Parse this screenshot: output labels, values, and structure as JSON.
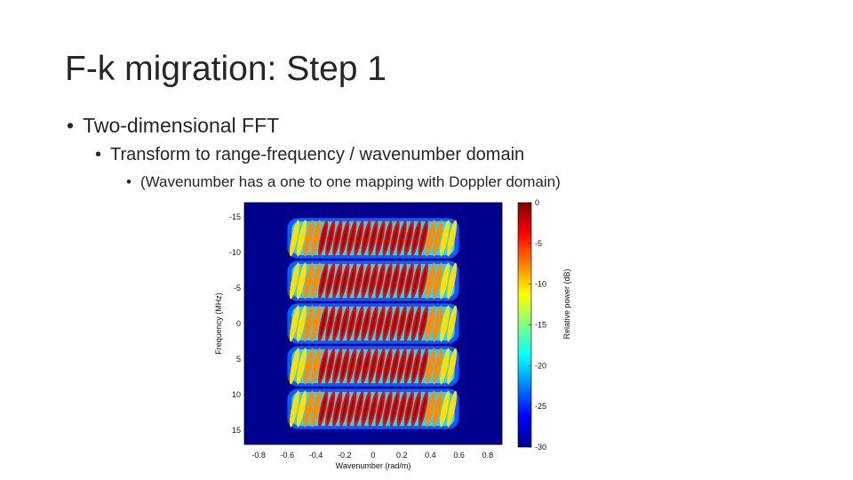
{
  "slide": {
    "title": "F-k migration: Step 1",
    "bullets": [
      {
        "level": 1,
        "marker": "•",
        "text": "Two-dimensional FFT"
      },
      {
        "level": 2,
        "marker": "•",
        "text": "Transform to range-frequency / wavenumber domain"
      },
      {
        "level": 3,
        "marker": "•",
        "text": "(Wavenumber has a one to one mapping with Doppler domain)"
      }
    ]
  },
  "chart_data": {
    "type": "heatmap",
    "xlabel": "Wavenumber (rad/m)",
    "ylabel": "Frequency (MHz)",
    "xlim": [
      -0.9,
      0.9
    ],
    "ylim": [
      -17,
      17
    ],
    "y_inverted": true,
    "xticks": [
      "-0.8",
      "-0.6",
      "-0.4",
      "-0.2",
      "0",
      "0.2",
      "0.4",
      "0.6",
      "0.8"
    ],
    "yticks": [
      "-15",
      "-10",
      "-5",
      "0",
      "5",
      "10",
      "15"
    ],
    "colorbar": {
      "label": "Relative power (dB)",
      "range": [
        -30,
        0
      ],
      "ticks": [
        "0",
        "-5",
        "-10",
        "-15",
        "-20",
        "-25",
        "-30"
      ],
      "colormap": "jet"
    },
    "pattern": {
      "band_centers_mhz": [
        -12,
        -6,
        0,
        6,
        12
      ],
      "wavenumber_extent": [
        -0.55,
        0.55
      ],
      "ripple_count": 22,
      "background_db": -30
    },
    "colors": {
      "background": "#00008f",
      "peak": "#9a0000"
    }
  }
}
